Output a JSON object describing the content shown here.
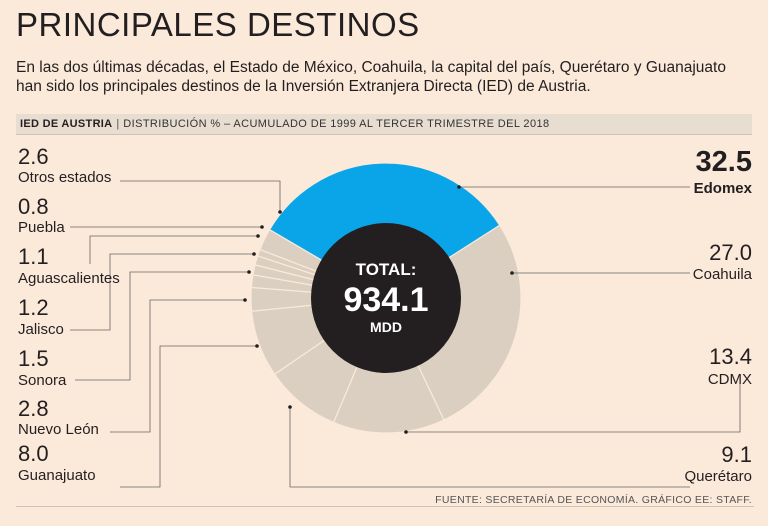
{
  "title": "PRINCIPALES DESTINOS",
  "subtitle": "En las dos últimas décadas, el Estado de México, Coahuila, la capital del país, Querétaro y Guanajuato han sido los principales destinos de la Inversión Extranjera Directa (IED) de Austria.",
  "band": {
    "label": "IED DE AUSTRIA",
    "separator": "|",
    "description": "DISTRIBUCIÓN % – ACUMULADO DE 1999 AL TERCER TRIMESTRE DEL 2018"
  },
  "source": "FUENTE: SECRETARÍA DE ECONOMÍA. GRÁFICO EE: STAFF.",
  "colors": {
    "background": "#fbe9da",
    "highlight": "#0aa5e8",
    "slice": "#dbcfc1",
    "center": "#231f20",
    "band": "#e8ddd1"
  },
  "chart_data": {
    "type": "pie",
    "variant": "donut",
    "unit": "%",
    "center": {
      "label_top": "TOTAL:",
      "value": "934.1",
      "label_bottom": "MDD"
    },
    "slices": [
      {
        "name": "Edomex",
        "value": 32.5,
        "value_label": "32.5",
        "highlight": true
      },
      {
        "name": "Coahuila",
        "value": 27.0,
        "value_label": "27.0",
        "highlight": false
      },
      {
        "name": "CDMX",
        "value": 13.4,
        "value_label": "13.4",
        "highlight": false
      },
      {
        "name": "Querétaro",
        "value": 9.1,
        "value_label": "9.1",
        "highlight": false
      },
      {
        "name": "Guanajuato",
        "value": 8.0,
        "value_label": "8.0",
        "highlight": false
      },
      {
        "name": "Nuevo León",
        "value": 2.8,
        "value_label": "2.8",
        "highlight": false
      },
      {
        "name": "Sonora",
        "value": 1.5,
        "value_label": "1.5",
        "highlight": false
      },
      {
        "name": "Jalisco",
        "value": 1.2,
        "value_label": "1.2",
        "highlight": false
      },
      {
        "name": "Aguascalientes",
        "value": 1.1,
        "value_label": "1.1",
        "highlight": false
      },
      {
        "name": "Puebla",
        "value": 0.8,
        "value_label": "0.8",
        "highlight": false
      },
      {
        "name": "Otros estados",
        "value": 2.6,
        "value_label": "2.6",
        "highlight": false
      }
    ]
  }
}
